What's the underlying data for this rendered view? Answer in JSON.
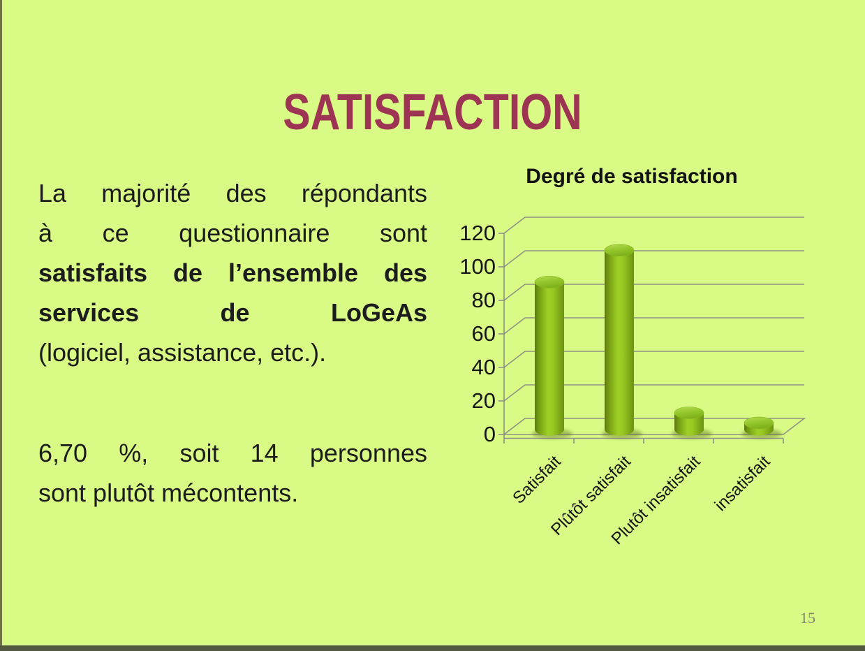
{
  "slide": {
    "title": "SATISFACTION",
    "page_number": "15",
    "colors": {
      "background": "#d9fb85",
      "title": "#9e3453",
      "body_text": "#1c1c1c",
      "border_left": "#6d7347",
      "border_bottom": "#545a41",
      "page_number": "#7d8271"
    }
  },
  "body": {
    "paragraph1": {
      "lines": [
        {
          "text": "La majorité des répondants",
          "bold": false,
          "stretch": true
        },
        {
          "text": "à ce questionnaire sont",
          "bold": false,
          "stretch": true
        },
        {
          "text": "satisfaits de l’ensemble des",
          "bold": true,
          "stretch": true
        },
        {
          "text": "services de LoGeAs",
          "bold": true,
          "stretch": true
        },
        {
          "text": "(logiciel, assistance, etc.).",
          "bold": false,
          "stretch": false
        }
      ]
    },
    "paragraph2": {
      "lines": [
        {
          "text": "6,70 %, soit 14 personnes",
          "bold": false,
          "stretch": true
        },
        {
          "text": "sont plutôt mécontents.",
          "bold": false,
          "stretch": false
        }
      ]
    }
  },
  "chart_data": {
    "type": "bar",
    "subtype": "3d-cylinder",
    "title": "Degré de satisfaction",
    "categories": [
      "Satisfait",
      "Plûtôt satisfait",
      "Plutôt insatisfait",
      "insatisfait"
    ],
    "values": [
      88,
      107,
      10,
      4
    ],
    "xlabel": "",
    "ylabel": "",
    "ylim": [
      0,
      120
    ],
    "yticks": [
      0,
      20,
      40,
      60,
      80,
      100,
      120
    ],
    "grid": true,
    "legend": false,
    "colors": {
      "bar_main": "#8fc31f",
      "bar_dark": "#5c7a0e",
      "bar_light": "#9ed027",
      "bar_top": "#94c62b",
      "gridline": "#8d9286",
      "tick_label": "#151515",
      "shadow": "#5f7320"
    }
  }
}
